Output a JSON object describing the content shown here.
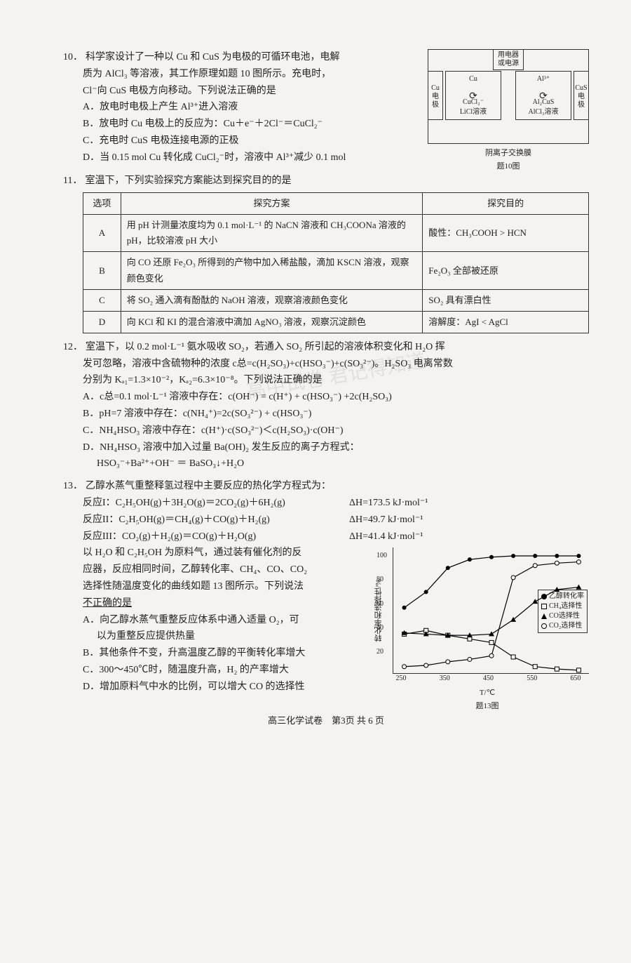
{
  "q10": {
    "num": "10．",
    "stem_1": "科学家设计了一种以 Cu 和 CuS 为电极的可循环电池，电解",
    "stem_2": "质为 AlCl₃ 等溶液，其工作原理如题 10 图所示。充电时，",
    "stem_3": "Cl⁻向 CuS 电极方向移动。下列说法正确的是",
    "opt_a": "A．放电时电极上产生 Al³⁺进入溶液",
    "opt_b": "B．放电时 Cu 电极上的反应为：Cu＋e⁻＋2Cl⁻＝CuCl₂⁻",
    "opt_c": "C．充电时 CuS 电极连接电源的正极",
    "opt_d": "D．当 0.15 mol Cu 转化成 CuCl₂⁻时，溶液中 Al³⁺减少 0.1 mol",
    "diagram": {
      "top_label_line1": "用电器",
      "top_label_line2": "或电源",
      "left_electrode": "Cu\n电\n极",
      "right_electrode": "CuS\n电\n极",
      "cell_left_top": "Cu",
      "cell_left_bot": "CuCl₂⁻",
      "cell_left_label": "LiCl溶液",
      "cell_right_top": "Al³⁺",
      "cell_right_bot": "Al₂CuS",
      "cell_right_label": "AlCl₃溶液",
      "membrane": "阴离子交换膜",
      "caption": "题10图"
    }
  },
  "q11": {
    "num": "11．",
    "stem": "室温下，下列实验探究方案能达到探究目的的是",
    "table": {
      "headers": [
        "选项",
        "探究方案",
        "探究目的"
      ],
      "rows": [
        {
          "opt": "A",
          "plan": "用 pH 计测量浓度均为 0.1 mol·L⁻¹ 的 NaCN 溶液和 CH₃COONa 溶液的 pH，比较溶液 pH 大小",
          "goal": "酸性：CH₃COOH > HCN"
        },
        {
          "opt": "B",
          "plan": "向 CO 还原 Fe₂O₃ 所得到的产物中加入稀盐酸，滴加 KSCN 溶液，观察颜色变化",
          "goal": "Fe₂O₃ 全部被还原"
        },
        {
          "opt": "C",
          "plan": "将 SO₂ 通入滴有酚酞的 NaOH 溶液，观察溶液颜色变化",
          "goal": "SO₂ 具有漂白性"
        },
        {
          "opt": "D",
          "plan": "向 KCl 和 KI 的混合溶液中滴加 AgNO₃ 溶液，观察沉淀颜色",
          "goal": "溶解度：AgI < AgCl"
        }
      ]
    }
  },
  "q12": {
    "num": "12．",
    "stem_1": "室温下，以 0.2 mol·L⁻¹ 氨水吸收 SO₂，若通入 SO₂ 所引起的溶液体积变化和 H₂O 挥",
    "stem_2": "发可忽略，溶液中含硫物种的浓度 c总=c(H₂SO₃)+c(HSO₃⁻)+c(SO₃²⁻)。H₂SO₃ 电离常数",
    "stem_3": "分别为 Kₐ₁=1.3×10⁻²，Kₐ₂=6.3×10⁻⁸。下列说法正确的是",
    "opt_a": "A．c总=0.1 mol·L⁻¹ 溶液中存在：c(OH⁻) = c(H⁺) + c(HSO₃⁻) +2c(H₂SO₃)",
    "opt_b": "B．pH=7 溶液中存在：c(NH₄⁺)=2c(SO₃²⁻) + c(HSO₃⁻)",
    "opt_c": "C．NH₄HSO₃ 溶液中存在：c(H⁺)·c(SO₃²⁻)＜c(H₂SO₃)·c(OH⁻)",
    "opt_d1": "D．NH₄HSO₃ 溶液中加入过量 Ba(OH)₂ 发生反应的离子方程式：",
    "opt_d2": "HSO₃⁻+Ba²⁺+OH⁻ ＝ BaSO₃↓+H₂O"
  },
  "q13": {
    "num": "13．",
    "stem": "乙醇水蒸气重整释氢过程中主要反应的热化学方程式为：",
    "rxn1_eq": "反应I：C₂H₅OH(g)＋3H₂O(g)＝2CO₂(g)＋6H₂(g)",
    "rxn1_dh": "ΔH=173.5 kJ·mol⁻¹",
    "rxn2_eq": "反应II：C₂H₅OH(g)＝CH₄(g)＋CO(g)＋H₂(g)",
    "rxn2_dh": "ΔH=49.7 kJ·mol⁻¹",
    "rxn3_eq": "反应III：CO₂(g)＋H₂(g)＝CO(g)＋H₂O(g)",
    "rxn3_dh": "ΔH=41.4 kJ·mol⁻¹",
    "body_1": "以 H₂O 和 C₂H₅OH 为原料气，通过装有催化剂的反",
    "body_2": "应器，反应相同时间，乙醇转化率、CH₄、CO、CO₂",
    "body_3": "选择性随温度变化的曲线如题 13 图所示。下列说法",
    "body_4": "不正确的是",
    "opt_a1": "A．向乙醇水蒸气重整反应体系中通入适量 O₂，可",
    "opt_a2": "以为重整反应提供热量",
    "opt_b": "B．其他条件不变，升高温度乙醇的平衡转化率增大",
    "opt_c": "C．300～450℃时，随温度升高，H₂ 的产率增大",
    "opt_d": "D．增加原料气中水的比例，可以增大 CO 的选择性",
    "chart": {
      "y_label": "转化率和选择性/%",
      "y_ticks": [
        20,
        40,
        60,
        80,
        100
      ],
      "x_label": "T/℃",
      "x_ticks": [
        250,
        350,
        450,
        550,
        650
      ],
      "caption": "题13图",
      "legend": [
        {
          "marker": "circle-fill",
          "label": "乙醇转化率"
        },
        {
          "marker": "square",
          "label": "CH₄选择性"
        },
        {
          "marker": "triangle-fill",
          "label": "CO选择性"
        },
        {
          "marker": "circle-open",
          "label": "CO₂选择性"
        }
      ],
      "x_domain": [
        225,
        675
      ],
      "y_domain": [
        0,
        105
      ],
      "series": {
        "ethanol": {
          "color": "#000",
          "marker": "circle-fill",
          "points": [
            [
              250,
              55
            ],
            [
              300,
              68
            ],
            [
              350,
              88
            ],
            [
              400,
              95
            ],
            [
              450,
              97
            ],
            [
              500,
              98
            ],
            [
              550,
              98
            ],
            [
              600,
              98
            ],
            [
              650,
              98
            ]
          ]
        },
        "ch4": {
          "color": "#000",
          "marker": "square",
          "points": [
            [
              250,
              33
            ],
            [
              300,
              36
            ],
            [
              350,
              32
            ],
            [
              400,
              29
            ],
            [
              450,
              26
            ],
            [
              500,
              14
            ],
            [
              550,
              6
            ],
            [
              600,
              4
            ],
            [
              650,
              3
            ]
          ]
        },
        "co": {
          "color": "#000",
          "marker": "triangle-fill",
          "points": [
            [
              250,
              34
            ],
            [
              300,
              33
            ],
            [
              350,
              32
            ],
            [
              400,
              32
            ],
            [
              450,
              33
            ],
            [
              500,
              45
            ],
            [
              550,
              60
            ],
            [
              600,
              70
            ],
            [
              650,
              72
            ]
          ]
        },
        "co2": {
          "color": "#000",
          "marker": "circle-open",
          "points": [
            [
              250,
              6
            ],
            [
              300,
              7
            ],
            [
              350,
              10
            ],
            [
              400,
              12
            ],
            [
              450,
              15
            ],
            [
              500,
              80
            ],
            [
              550,
              90
            ],
            [
              600,
              92
            ],
            [
              650,
              93
            ]
          ]
        }
      }
    }
  },
  "footer": "高三化学试卷　第3页 共 6 页"
}
